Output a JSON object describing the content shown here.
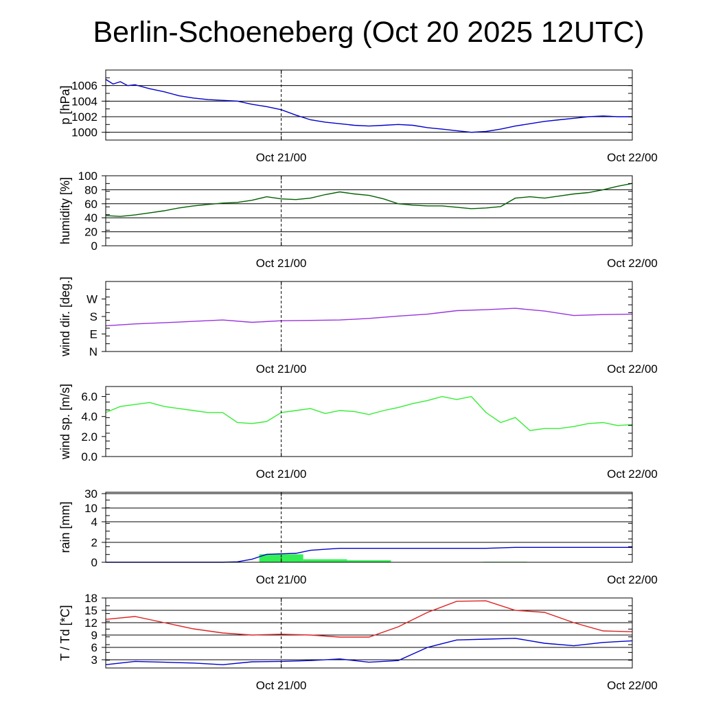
{
  "title": "Berlin-Schoeneberg (Oct 20 2025 12UTC)",
  "chart_data": {
    "type": "line",
    "title": "Berlin-Schoeneberg (Oct 20 2025 12UTC)",
    "x_range": [
      "Oct 20 12UTC",
      "Oct 22 00UTC"
    ],
    "x_ticks": [
      "Oct 21/00",
      "Oct 22/00"
    ],
    "time_hours": [
      0,
      2,
      4,
      6,
      8,
      10,
      12,
      14,
      16,
      18,
      20,
      22,
      24,
      26,
      28,
      30,
      32,
      34,
      36
    ],
    "panels": [
      {
        "ylabel": "p [hPa]",
        "ylim": [
          999,
          1008
        ],
        "yticks": [
          1000,
          1002,
          1004,
          1006
        ],
        "ytick_labels": [
          "1000",
          "1002",
          "1004",
          "1006"
        ],
        "gridlines": [
          1000,
          1002,
          1004,
          1006
        ],
        "series": [
          {
            "color": "#0000cc",
            "x": [
              0,
              0.5,
              1,
              1.5,
              2,
              3,
              4,
              5,
              6,
              7,
              8,
              9,
              10,
              11,
              12,
              13,
              14,
              15,
              16,
              17,
              18,
              19,
              20,
              21,
              22,
              23,
              24,
              25,
              26,
              27,
              28,
              29,
              30,
              31,
              32,
              33,
              34,
              35,
              36
            ],
            "y": [
              1006.8,
              1006.2,
              1006.5,
              1006.0,
              1006.1,
              1005.6,
              1005.2,
              1004.7,
              1004.4,
              1004.2,
              1004.1,
              1004.0,
              1003.6,
              1003.3,
              1002.9,
              1002.2,
              1001.6,
              1001.3,
              1001.1,
              1000.9,
              1000.8,
              1000.9,
              1001.0,
              1000.9,
              1000.6,
              1000.4,
              1000.2,
              1000.0,
              1000.1,
              1000.4,
              1000.8,
              1001.1,
              1001.4,
              1001.6,
              1001.8,
              1002.0,
              1002.1,
              1002.0,
              1002.0
            ]
          }
        ]
      },
      {
        "ylabel": "humidity [%]",
        "ylim": [
          0,
          100
        ],
        "yticks": [
          0,
          20,
          40,
          60,
          80,
          100
        ],
        "ytick_labels": [
          "0",
          "20",
          "40",
          "60",
          "80",
          "100"
        ],
        "gridlines": [
          20,
          40,
          60,
          80
        ],
        "series": [
          {
            "color": "#006000",
            "x": [
              0,
              1,
              2,
              3,
              4,
              5,
              6,
              7,
              8,
              9,
              10,
              11,
              12,
              13,
              14,
              15,
              16,
              17,
              18,
              19,
              20,
              21,
              22,
              23,
              24,
              25,
              26,
              27,
              28,
              29,
              30,
              31,
              32,
              33,
              34,
              35,
              36
            ],
            "y": [
              43,
              42,
              44,
              47,
              50,
              54,
              57,
              59,
              61,
              62,
              65,
              70,
              67,
              66,
              68,
              73,
              77,
              74,
              72,
              67,
              60,
              58,
              57,
              57,
              55,
              53,
              54,
              56,
              68,
              70,
              68,
              71,
              74,
              76,
              80,
              85,
              89
            ]
          }
        ]
      },
      {
        "ylabel": "wind dir. [deg.]",
        "ylim": [
          0,
          360
        ],
        "yticks": [
          0,
          90,
          180,
          270
        ],
        "ytick_labels": [
          "N",
          "E",
          "S",
          "W"
        ],
        "gridlines": [],
        "series": [
          {
            "color": "#9933dd",
            "x": [
              0,
              2,
              4,
              6,
              8,
              10,
              12,
              14,
              16,
              18,
              20,
              22,
              24,
              26,
              28,
              30,
              32,
              34,
              36
            ],
            "y": [
              132,
              142,
              148,
              155,
              162,
              150,
              158,
              160,
              162,
              170,
              182,
              192,
              210,
              215,
              222,
              208,
              185,
              190,
              192
            ]
          }
        ]
      },
      {
        "ylabel": "wind sp. [m/s]",
        "ylim": [
          0,
          7
        ],
        "yticks": [
          0,
          2,
          4,
          6
        ],
        "ytick_labels": [
          "0.0",
          "2.0",
          "4.0",
          "6.0"
        ],
        "gridlines": [],
        "series": [
          {
            "color": "#33ee33",
            "x": [
              0,
              1,
              2,
              3,
              4,
              5,
              6,
              7,
              8,
              9,
              10,
              11,
              12,
              13,
              14,
              15,
              16,
              17,
              18,
              19,
              20,
              21,
              22,
              23,
              24,
              25,
              26,
              27,
              28,
              29,
              30,
              31,
              32,
              33,
              34,
              35,
              36
            ],
            "y": [
              4.4,
              5.0,
              5.2,
              5.4,
              5.0,
              4.8,
              4.6,
              4.4,
              4.4,
              3.4,
              3.3,
              3.5,
              4.4,
              4.6,
              4.8,
              4.3,
              4.6,
              4.5,
              4.2,
              4.6,
              4.9,
              5.3,
              5.6,
              6.0,
              5.7,
              6.0,
              4.4,
              3.4,
              3.9,
              2.6,
              2.8,
              2.8,
              3.0,
              3.3,
              3.4,
              3.1,
              3.2
            ]
          }
        ]
      },
      {
        "ylabel": "rain [mm]",
        "ylim": [
          0,
          30
        ],
        "yticks": [
          0,
          2,
          4,
          10,
          30
        ],
        "ytick_labels": [
          "0",
          "2",
          "4",
          "10",
          "30"
        ],
        "gridlines": [
          2,
          4,
          10,
          30
        ],
        "bars": {
          "color": "#33ee55",
          "start": [
            10.5,
            13.5,
            16.5,
            25.8
          ],
          "end": [
            13.5,
            16.5,
            19.5,
            28.8
          ],
          "values": [
            0.8,
            0.3,
            0.2,
            0.05
          ]
        },
        "series": [
          {
            "color": "#0000cc",
            "x": [
              0,
              8,
              9,
              10,
              11,
              12,
              13,
              14,
              15,
              16,
              20,
              24,
              26,
              28,
              32,
              36
            ],
            "y": [
              0,
              0,
              0.05,
              0.3,
              0.8,
              0.85,
              0.9,
              1.2,
              1.3,
              1.4,
              1.4,
              1.4,
              1.4,
              1.5,
              1.5,
              1.5
            ]
          }
        ]
      },
      {
        "ylabel": "T / Td [*C]",
        "ylim": [
          1,
          18
        ],
        "yticks": [
          3,
          6,
          9,
          12,
          15,
          18
        ],
        "ytick_labels": [
          "3",
          "6",
          "9",
          "12",
          "15",
          "18"
        ],
        "gridlines": [
          3,
          6,
          9,
          12,
          15,
          18
        ],
        "series": [
          {
            "color": "#dd2222",
            "x": [
              0,
              2,
              4,
              6,
              8,
              10,
              12,
              14,
              16,
              18,
              20,
              22,
              24,
              26,
              28,
              30,
              32,
              34,
              36
            ],
            "y": [
              12.8,
              13.5,
              12.0,
              10.5,
              9.5,
              9.0,
              9.2,
              9.0,
              8.5,
              8.5,
              11.0,
              14.5,
              17.2,
              17.3,
              15.0,
              14.5,
              12.0,
              10.0,
              9.8
            ]
          },
          {
            "color": "#0000cc",
            "x": [
              0,
              2,
              4,
              6,
              8,
              10,
              12,
              14,
              16,
              18,
              20,
              22,
              24,
              26,
              28,
              30,
              32,
              34,
              36
            ],
            "y": [
              1.8,
              2.6,
              2.4,
              2.2,
              1.8,
              2.5,
              2.6,
              2.8,
              3.2,
              2.4,
              2.8,
              6.0,
              7.8,
              8.0,
              8.2,
              7.0,
              6.4,
              7.2,
              7.6
            ]
          }
        ]
      }
    ]
  }
}
